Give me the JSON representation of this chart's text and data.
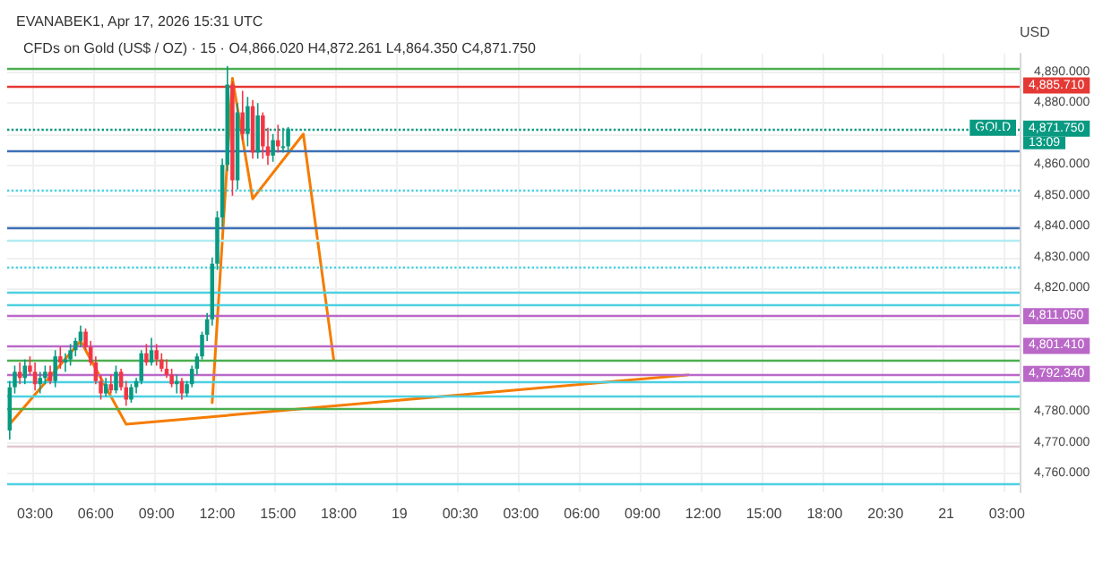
{
  "chart_data": {
    "type": "candlestick",
    "title": "EVANABEK1, Apr 17, 2026 15:31 UTC",
    "subtitle": "CFDs on Gold (US$ / OZ) · 15 · O4,866.020 H4,872.261 L4,864.350 C4,871.750",
    "ylabel": "USD",
    "categories": [
      null,
      null,
      null,
      null,
      null,
      "03:00",
      null,
      null,
      null,
      null,
      null,
      null,
      null,
      null,
      null,
      null,
      null,
      "06:00",
      null,
      null,
      null,
      null,
      null,
      null,
      null,
      null,
      null,
      null,
      null,
      "09:00",
      null,
      null,
      null,
      null,
      null,
      null,
      null,
      null,
      null,
      null,
      null,
      "12:00",
      null,
      null,
      null,
      null,
      null,
      null,
      null,
      null,
      null,
      null,
      null,
      "15:00",
      null,
      null,
      null,
      null,
      null,
      null,
      null,
      null,
      null,
      null,
      null,
      "18:00",
      null,
      null,
      null,
      null,
      null,
      null,
      null,
      null,
      null,
      null,
      null,
      "19",
      null,
      null,
      null,
      null,
      null,
      null,
      null,
      null,
      null,
      null,
      null,
      "00:30",
      null,
      null,
      null,
      null,
      null,
      null,
      null,
      null,
      null,
      null,
      null,
      "03:00",
      null,
      null,
      null,
      null,
      null,
      null,
      null,
      null,
      null,
      null,
      null,
      "06:00",
      null,
      null,
      null,
      null,
      null,
      null,
      null,
      null,
      null,
      null,
      null,
      "09:00",
      null,
      null,
      null,
      null,
      null,
      null,
      null,
      null,
      null,
      null,
      null,
      "12:00",
      null,
      null,
      null,
      null,
      null,
      null,
      null,
      null,
      null,
      null,
      null,
      "15:00",
      null,
      null,
      null,
      null,
      null,
      null,
      null,
      null,
      null,
      null,
      null,
      "18:00",
      null,
      null,
      null,
      null,
      null,
      null,
      null,
      null,
      null,
      null,
      null,
      "20:30",
      null,
      null,
      null,
      null,
      null,
      null,
      null,
      null,
      null,
      null,
      null,
      "21",
      null,
      null,
      null,
      null,
      null,
      null,
      null,
      null,
      null,
      null,
      null,
      "03:00",
      null,
      null
    ],
    "ohlc": [
      [
        4774,
        4790,
        4771,
        4788
      ],
      [
        4788,
        4795,
        4786,
        4793
      ],
      [
        4793,
        4796,
        4789,
        4791
      ],
      [
        4791,
        4797,
        4789,
        4795
      ],
      [
        4795,
        4798,
        4792,
        4793
      ],
      [
        4793,
        4796,
        4787,
        4789
      ],
      [
        4789,
        4793,
        4786,
        4791
      ],
      [
        4791,
        4795,
        4789,
        4793
      ],
      [
        4793,
        4795,
        4789,
        4790
      ],
      [
        4790,
        4800,
        4788,
        4798
      ],
      [
        4798,
        4801,
        4794,
        4796
      ],
      [
        4796,
        4799,
        4793,
        4797
      ],
      [
        4797,
        4802,
        4795,
        4800
      ],
      [
        4800,
        4804,
        4798,
        4803
      ],
      [
        4803,
        4808,
        4801,
        4806
      ],
      [
        4806,
        4807,
        4800,
        4801
      ],
      [
        4801,
        4803,
        4795,
        4796
      ],
      [
        4796,
        4798,
        4789,
        4790
      ],
      [
        4790,
        4792,
        4784,
        4786
      ],
      [
        4786,
        4791,
        4785,
        4789
      ],
      [
        4789,
        4792,
        4786,
        4787
      ],
      [
        4787,
        4795,
        4786,
        4793
      ],
      [
        4793,
        4794,
        4787,
        4788
      ],
      [
        4788,
        4790,
        4782,
        4784
      ],
      [
        4784,
        4789,
        4783,
        4788
      ],
      [
        4788,
        4791,
        4786,
        4790
      ],
      [
        4790,
        4800,
        4789,
        4799
      ],
      [
        4799,
        4802,
        4795,
        4796
      ],
      [
        4796,
        4804,
        4795,
        4800
      ],
      [
        4800,
        4802,
        4795,
        4797
      ],
      [
        4797,
        4799,
        4793,
        4794
      ],
      [
        4794,
        4797,
        4791,
        4792
      ],
      [
        4792,
        4794,
        4788,
        4789
      ],
      [
        4789,
        4792,
        4786,
        4790
      ],
      [
        4790,
        4791,
        4784,
        4786
      ],
      [
        4786,
        4790,
        4785,
        4789
      ],
      [
        4789,
        4795,
        4788,
        4794
      ],
      [
        4794,
        4799,
        4792,
        4798
      ],
      [
        4798,
        4806,
        4797,
        4805
      ],
      [
        4805,
        4812,
        4803,
        4810
      ],
      [
        4810,
        4830,
        4808,
        4828
      ],
      [
        4828,
        4845,
        4826,
        4843
      ],
      [
        4843,
        4862,
        4840,
        4860
      ],
      [
        4860,
        4892,
        4858,
        4886
      ],
      [
        4886,
        4887,
        4850,
        4855
      ],
      [
        4855,
        4880,
        4852,
        4877
      ],
      [
        4877,
        4884,
        4868,
        4870
      ],
      [
        4870,
        4882,
        4866,
        4879
      ],
      [
        4879,
        4881,
        4862,
        4864
      ],
      [
        4864,
        4880,
        4862,
        4876
      ],
      [
        4876,
        4877,
        4862,
        4866
      ],
      [
        4866,
        4872,
        4860,
        4863
      ],
      [
        4863,
        4870,
        4861,
        4868
      ],
      [
        4868,
        4873,
        4864,
        4866
      ],
      [
        4866,
        4872,
        4864,
        4866.02
      ],
      [
        4866.02,
        4872.261,
        4864.35,
        4871.75
      ],
      null,
      null,
      null,
      null,
      null,
      null,
      null,
      null,
      null,
      null,
      null,
      null,
      null,
      null,
      null,
      null,
      null,
      null,
      null,
      null,
      null,
      null,
      null,
      null,
      null,
      null,
      null,
      null,
      null,
      null,
      null,
      null,
      null,
      null,
      null,
      null,
      null,
      null,
      null,
      null,
      null,
      null,
      null,
      null,
      null,
      null,
      null,
      null,
      null,
      null,
      null,
      null,
      null,
      null,
      null,
      null,
      null,
      null,
      null,
      null,
      null,
      null,
      null,
      null,
      null,
      null,
      null,
      null,
      null,
      null,
      null,
      null,
      null,
      null,
      null,
      null,
      null,
      null,
      null,
      null,
      null,
      null,
      null,
      null,
      null,
      null,
      null,
      null,
      null,
      null,
      null,
      null,
      null,
      null,
      null,
      null,
      null,
      null,
      null,
      null,
      null,
      null,
      null,
      null,
      null,
      null,
      null,
      null,
      null,
      null,
      null,
      null,
      null,
      null,
      null,
      null,
      null,
      null,
      null,
      null,
      null,
      null,
      null,
      null,
      null,
      null,
      null,
      null,
      null,
      null,
      null,
      null,
      null,
      null,
      null,
      null,
      null,
      null,
      null,
      null,
      null,
      null,
      null,
      null
    ],
    "colors": [
      "#089981",
      "#089981",
      "#f23645",
      "#089981",
      "#f23645",
      "#f23645",
      "#089981",
      "#089981",
      "#f23645",
      "#089981",
      "#f23645",
      "#089981",
      "#089981",
      "#089981",
      "#089981",
      "#f23645",
      "#f23645",
      "#f23645",
      "#f23645",
      "#089981",
      "#f23645",
      "#089981",
      "#f23645",
      "#f23645",
      "#089981",
      "#089981",
      "#089981",
      "#f23645",
      "#089981",
      "#f23645",
      "#f23645",
      "#f23645",
      "#f23645",
      "#089981",
      "#f23645",
      "#089981",
      "#089981",
      "#089981",
      "#089981",
      "#089981",
      "#089981",
      "#089981",
      "#089981",
      "#089981",
      "#f23645",
      "#089981",
      "#f23645",
      "#089981",
      "#f23645",
      "#089981",
      "#f23645",
      "#f23645",
      "#089981",
      "#f23645",
      "#089981",
      "#089981",
      null,
      null,
      null,
      null,
      null,
      null,
      null,
      null,
      null,
      null,
      null,
      null,
      null,
      null,
      null,
      null,
      null,
      null,
      null,
      null,
      null,
      null,
      null,
      null,
      null,
      null,
      null,
      null,
      null,
      null,
      null,
      null,
      null,
      null,
      null,
      null,
      null,
      null,
      null,
      null,
      null,
      null,
      null,
      null,
      null,
      null,
      null,
      null,
      null,
      null,
      null,
      null,
      null,
      null,
      null,
      null,
      null,
      null,
      null,
      null,
      null,
      null,
      null,
      null,
      null,
      null,
      null,
      null,
      null,
      null,
      null,
      null,
      null,
      null,
      null,
      null,
      null,
      null,
      null,
      null,
      null,
      null,
      null,
      null,
      null,
      null,
      null,
      null,
      null,
      null,
      null,
      null,
      null,
      null,
      null,
      null,
      null,
      null,
      null,
      null,
      null,
      null,
      null,
      null,
      null,
      null,
      null,
      null,
      null,
      null,
      null,
      null,
      null,
      null,
      null,
      null,
      null,
      null,
      null,
      null,
      null,
      null,
      null,
      null,
      null,
      null,
      null,
      null,
      null,
      null,
      null,
      null,
      null,
      null,
      null,
      null,
      null,
      null,
      null,
      null,
      null,
      null,
      null,
      null
    ],
    "series": [
      {
        "type": "line",
        "color": "#f57c00",
        "values": [
          4776,
          null,
          null,
          null,
          null,
          null,
          null,
          null,
          null,
          null,
          null,
          null,
          null,
          null,
          4803,
          null,
          null,
          null,
          null,
          null,
          null,
          null,
          null,
          4776,
          null,
          null,
          null,
          null,
          null,
          null,
          null,
          null,
          null,
          null,
          null,
          null,
          null,
          null,
          null,
          null,
          null,
          null,
          null,
          null,
          null,
          null,
          null,
          null,
          null,
          null,
          null,
          null,
          null,
          null,
          null,
          null,
          null,
          null,
          null,
          null,
          null,
          null,
          null,
          null,
          null,
          null,
          null,
          null,
          null,
          null,
          null,
          null,
          null,
          null,
          null,
          null,
          null,
          null,
          null,
          null,
          null,
          null,
          null,
          null,
          null,
          null,
          null,
          null,
          null,
          null,
          null,
          null,
          null,
          null,
          null,
          null,
          null,
          null,
          null,
          null,
          null,
          null,
          null,
          null,
          null,
          null,
          null,
          null,
          null,
          null,
          null,
          null,
          null,
          null,
          null,
          null,
          null,
          null,
          null,
          null,
          null,
          null,
          null,
          null,
          null,
          null,
          null,
          null,
          null,
          null,
          null,
          null,
          null,
          null,
          4792,
          null,
          null,
          null,
          null,
          null,
          null,
          null,
          null,
          null,
          null,
          null,
          null,
          null,
          null,
          null,
          null,
          null,
          null,
          null,
          null,
          null,
          null,
          null,
          null,
          null,
          null,
          null,
          null,
          null,
          null,
          null,
          null,
          null,
          null,
          null,
          null,
          null,
          null,
          null,
          null,
          null,
          null,
          null,
          null,
          null,
          null,
          null,
          null,
          null,
          null,
          null,
          null,
          null,
          null,
          null,
          null,
          null,
          null,
          null,
          null,
          null,
          null,
          null,
          null,
          null
        ]
      },
      {
        "type": "line",
        "color": "#f57c00",
        "values": [
          null,
          null,
          null,
          null,
          null,
          null,
          null,
          null,
          null,
          null,
          null,
          null,
          null,
          null,
          null,
          null,
          null,
          null,
          null,
          null,
          null,
          null,
          null,
          null,
          null,
          null,
          null,
          null,
          null,
          null,
          null,
          null,
          null,
          null,
          null,
          null,
          null,
          null,
          null,
          null,
          4783,
          null,
          null,
          null,
          4888,
          null,
          null,
          null,
          4849,
          null,
          null,
          null,
          null,
          null,
          null,
          null,
          null,
          null,
          4870,
          null,
          null,
          null,
          null,
          null,
          4797,
          null,
          null,
          null,
          null,
          null,
          null,
          null,
          null,
          null,
          null,
          null,
          null,
          null,
          null,
          null,
          null,
          null,
          null,
          null,
          null,
          null,
          null,
          null,
          null,
          null,
          null,
          null,
          null,
          null,
          null,
          null,
          null,
          null,
          null,
          null,
          null,
          null,
          null,
          null,
          null,
          null,
          null,
          null,
          null,
          null,
          null,
          null,
          null,
          null,
          null,
          null,
          null,
          null,
          null,
          null,
          null,
          null,
          null,
          null,
          null,
          null,
          null,
          null,
          null,
          null,
          null,
          null,
          null,
          null,
          null,
          null,
          null,
          null,
          null,
          null,
          null,
          null,
          null,
          null,
          null,
          null,
          null,
          null,
          null,
          null,
          null,
          null,
          null,
          null,
          null,
          null,
          null,
          null,
          null,
          null,
          null,
          null,
          null,
          null,
          null,
          null,
          null,
          null,
          null,
          null,
          null,
          null,
          null,
          null,
          null,
          null,
          null,
          null,
          null,
          null,
          null,
          null,
          null,
          null,
          null,
          null,
          null,
          null,
          null,
          null,
          null,
          null,
          null,
          null,
          null,
          null,
          null,
          null,
          null,
          null
        ]
      }
    ],
    "ylim": [
      4754,
      4896
    ],
    "yticks": [
      {
        "value": 4760,
        "label": "4,760.000"
      },
      {
        "value": 4770,
        "label": "4,770.000"
      },
      {
        "value": 4780,
        "label": "4,780.000"
      },
      {
        "value": 4790,
        "label": null
      },
      {
        "value": 4800,
        "label": null
      },
      {
        "value": 4810,
        "label": null
      },
      {
        "value": 4820,
        "label": "4,820.000"
      },
      {
        "value": 4830,
        "label": "4,830.000"
      },
      {
        "value": 4840,
        "label": "4,840.000"
      },
      {
        "value": 4850,
        "label": "4,850.000"
      },
      {
        "value": 4860,
        "label": "4,860.000"
      },
      {
        "value": 4870,
        "label": null
      },
      {
        "value": 4880,
        "label": "4,880.000"
      },
      {
        "value": 4890,
        "label": "4,890.000"
      }
    ],
    "ref_lines": [
      {
        "axis": "y",
        "value": 4891,
        "color": "#4caf50",
        "line_style": "solid"
      },
      {
        "axis": "y",
        "value": 4885.71,
        "label": "4,885.710",
        "color": "#e53935",
        "line_style": "solid"
      },
      {
        "axis": "y",
        "value": 4871.75,
        "label": "4,871.750",
        "color": "#089981",
        "line_style": "dotted"
      },
      {
        "axis": "y",
        "value": 4864.5,
        "color": "#3d6fb6",
        "line_style": "solid"
      },
      {
        "axis": "y",
        "value": 4852,
        "color": "#4dd0e1",
        "line_style": "dotted"
      },
      {
        "axis": "y",
        "value": 4839.5,
        "color": "#3d6fb6",
        "line_style": "solid"
      },
      {
        "axis": "y",
        "value": 4835.5,
        "color": "#b2ebf2",
        "line_style": "solid"
      },
      {
        "axis": "y",
        "value": 4827,
        "color": "#4dd0e1",
        "line_style": "dotted"
      },
      {
        "axis": "y",
        "value": 4818.5,
        "color": "#4dd0e1",
        "line_style": "solid"
      },
      {
        "axis": "y",
        "value": 4814.5,
        "color": "#4dd0e1",
        "line_style": "solid"
      },
      {
        "axis": "y",
        "value": 4811.05,
        "label": "4,811.050",
        "color": "#ba68c8",
        "line_style": "solid"
      },
      {
        "axis": "y",
        "value": 4801.41,
        "label": "4,801.410",
        "color": "#ba68c8",
        "line_style": "solid"
      },
      {
        "axis": "y",
        "value": 4797,
        "color": "#4caf50",
        "line_style": "solid"
      },
      {
        "axis": "y",
        "value": 4792.34,
        "label": "4,792.340",
        "color": "#ba68c8",
        "line_style": "solid"
      },
      {
        "axis": "y",
        "value": 4790,
        "color": "#4dd0e1",
        "line_style": "solid"
      },
      {
        "axis": "y",
        "value": 4785,
        "color": "#4dd0e1",
        "line_style": "solid"
      },
      {
        "axis": "y",
        "value": 4781,
        "color": "#4caf50",
        "line_style": "solid"
      },
      {
        "axis": "y",
        "value": 4769,
        "color": "#e0c8d0",
        "line_style": "solid"
      },
      {
        "axis": "y",
        "value": 4757,
        "color": "#4dd0e1",
        "line_style": "solid"
      }
    ],
    "annotations": [
      {
        "text": "GOLD",
        "y": 4871.75
      },
      "13:09"
    ],
    "marker": "none",
    "grid": true
  }
}
